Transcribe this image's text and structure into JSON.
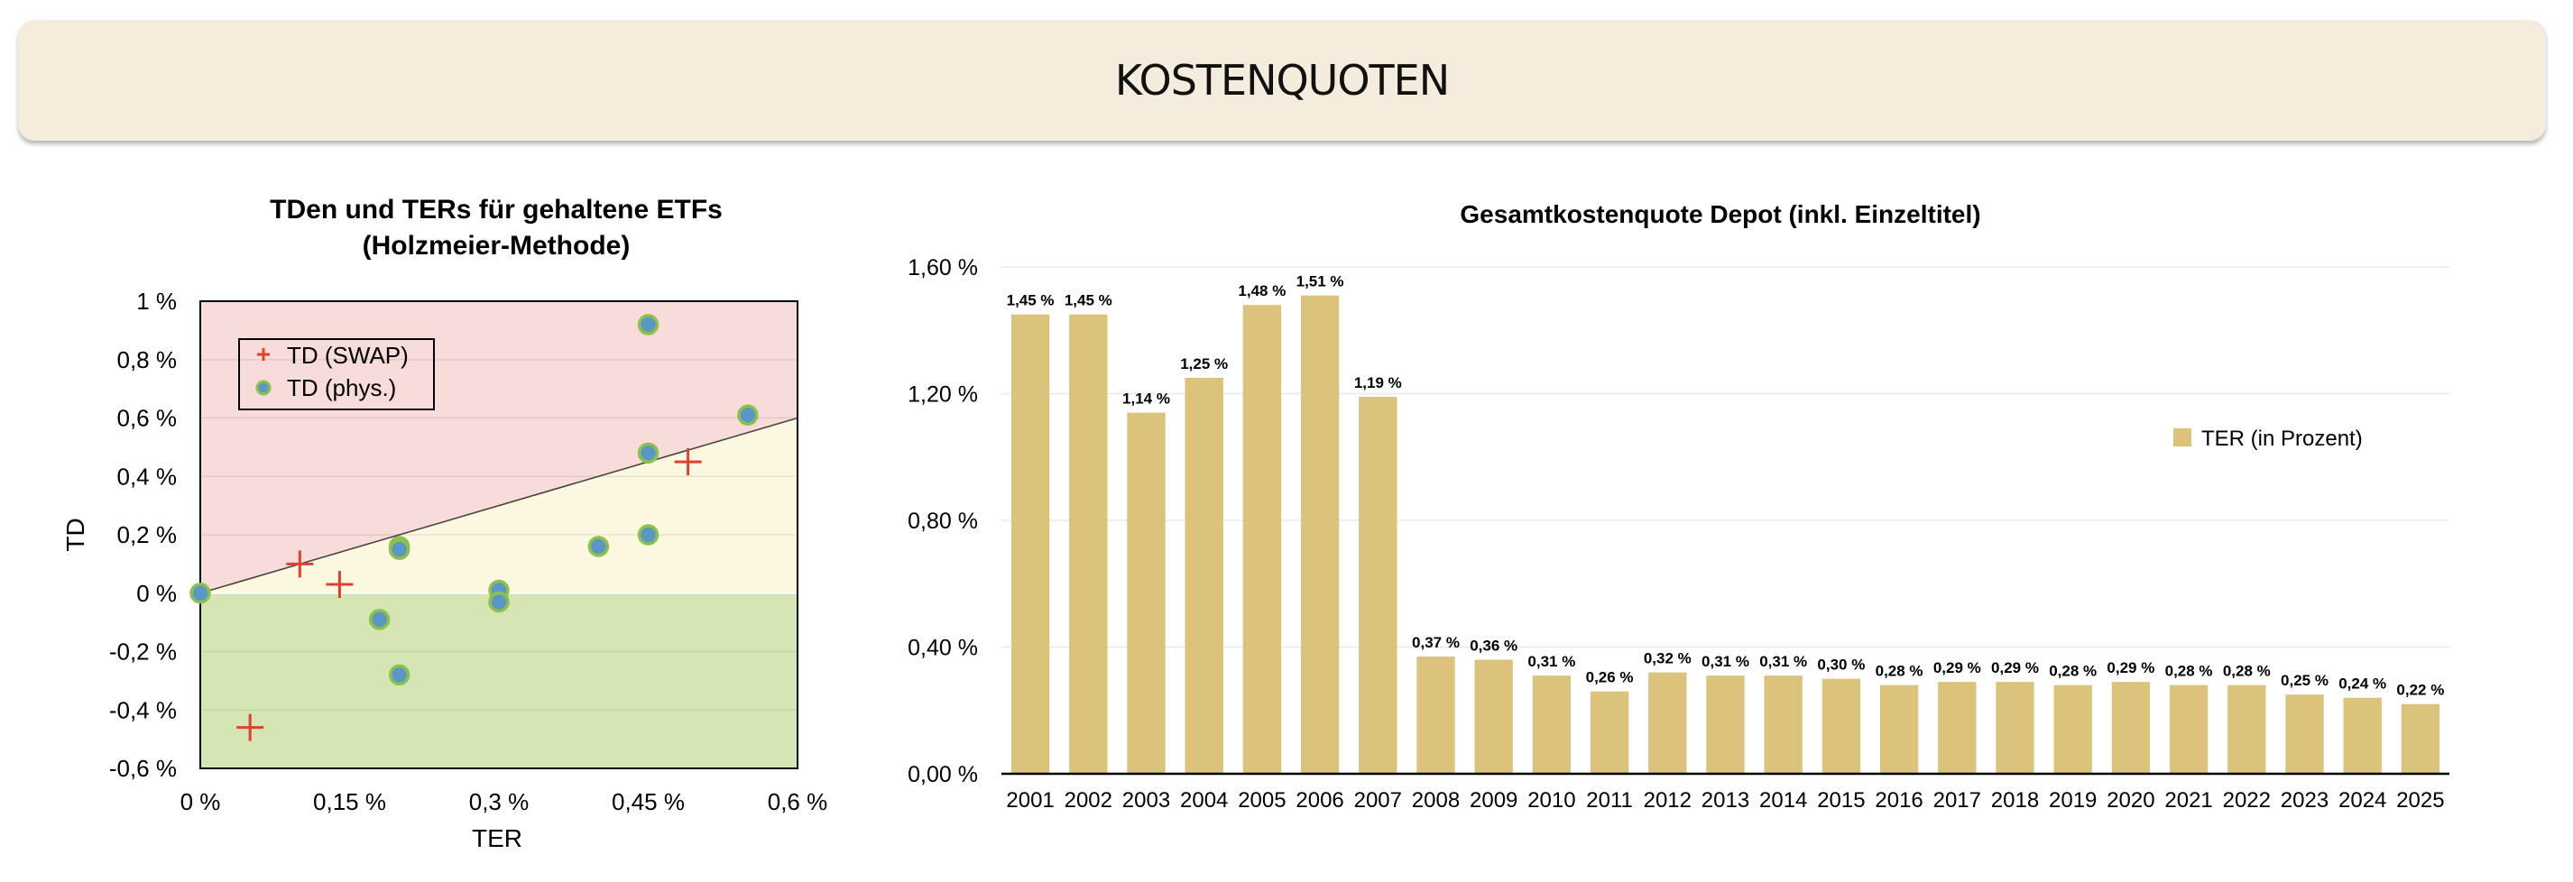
{
  "header": {
    "title": "KOSTENQUOTEN"
  },
  "colors": {
    "header_bg": "#f4eddd",
    "zone_above": "#f7dcd9",
    "zone_middle": "#fdf8e0",
    "zone_below": "#d5e6b4",
    "bar": "#dcc37b",
    "swap_marker": "#e0402d",
    "phys_fill": "#5a97c4",
    "phys_ring": "#8cc14b"
  },
  "chart_data": [
    {
      "type": "scatter",
      "title": "TDen und TERs für gehaltene ETFs",
      "subtitle": "(Holzmeier-Methode)",
      "xlabel": "TER",
      "ylabel": "TD",
      "xlim": [
        0,
        0.6
      ],
      "ylim": [
        -0.6,
        1.0
      ],
      "x_ticks": [
        0,
        0.15,
        0.3,
        0.45,
        0.6
      ],
      "x_tick_labels": [
        "0 %",
        "0,15 %",
        "0,3 %",
        "0,45 %",
        "0,6 %"
      ],
      "y_ticks": [
        1.0,
        0.8,
        0.6,
        0.4,
        0.2,
        0,
        -0.2,
        -0.4,
        -0.6
      ],
      "y_tick_labels": [
        "1 %",
        "0,8 %",
        "0,6 %",
        "0,4 %",
        "0,2 %",
        "0 %",
        "-0,2 %",
        "-0,4 %",
        "-0,6 %"
      ],
      "legend_position": "top-left",
      "reference_line": {
        "from": [
          0,
          0
        ],
        "to": [
          0.6,
          0.6
        ]
      },
      "series": [
        {
          "name": "TD (SWAP)",
          "marker": "plus",
          "points": [
            [
              0.05,
              -0.46
            ],
            [
              0.1,
              0.1
            ],
            [
              0.14,
              0.03
            ],
            [
              0.49,
              0.45
            ]
          ]
        },
        {
          "name": "TD (phys.)",
          "marker": "circle",
          "points": [
            [
              0,
              0
            ],
            [
              0.18,
              -0.09
            ],
            [
              0.2,
              0.16
            ],
            [
              0.2,
              0.15
            ],
            [
              0.2,
              -0.28
            ],
            [
              0.3,
              0.01
            ],
            [
              0.3,
              -0.03
            ],
            [
              0.4,
              0.16
            ],
            [
              0.45,
              0.92
            ],
            [
              0.45,
              0.48
            ],
            [
              0.45,
              0.2
            ],
            [
              0.55,
              0.61
            ]
          ]
        }
      ]
    },
    {
      "type": "bar",
      "title": "Gesamtkostenquote Depot (inkl. Einzeltitel)",
      "xlabel": "",
      "ylabel": "",
      "ylim": [
        0,
        1.6
      ],
      "y_ticks": [
        0,
        0.4,
        0.8,
        1.2,
        1.6
      ],
      "y_tick_labels": [
        "0,00 %",
        "0,40 %",
        "0,80 %",
        "1,20 %",
        "1,60 %"
      ],
      "legend_position": "right",
      "categories": [
        "2001",
        "2002",
        "2003",
        "2004",
        "2005",
        "2006",
        "2007",
        "2008",
        "2009",
        "2010",
        "2011",
        "2012",
        "2013",
        "2014",
        "2015",
        "2016",
        "2017",
        "2018",
        "2019",
        "2020",
        "2021",
        "2022",
        "2023",
        "2024",
        "2025"
      ],
      "series": [
        {
          "name": "TER (in Prozent)",
          "values": [
            1.45,
            1.45,
            1.14,
            1.25,
            1.48,
            1.51,
            1.19,
            0.37,
            0.36,
            0.31,
            0.26,
            0.32,
            0.31,
            0.31,
            0.3,
            0.28,
            0.29,
            0.29,
            0.28,
            0.29,
            0.28,
            0.28,
            0.25,
            0.24,
            0.22
          ],
          "value_labels": [
            "1,45 %",
            "1,45 %",
            "1,14 %",
            "1,25 %",
            "1,48 %",
            "1,51 %",
            "1,19 %",
            "0,37 %",
            "0,36 %",
            "0,31 %",
            "0,26 %",
            "0,32 %",
            "0,31 %",
            "0,31 %",
            "0,30 %",
            "0,28 %",
            "0,29 %",
            "0,29 %",
            "0,28 %",
            "0,29 %",
            "0,28 %",
            "0,28 %",
            "0,25 %",
            "0,24 %",
            "0,22 %"
          ]
        }
      ]
    }
  ]
}
